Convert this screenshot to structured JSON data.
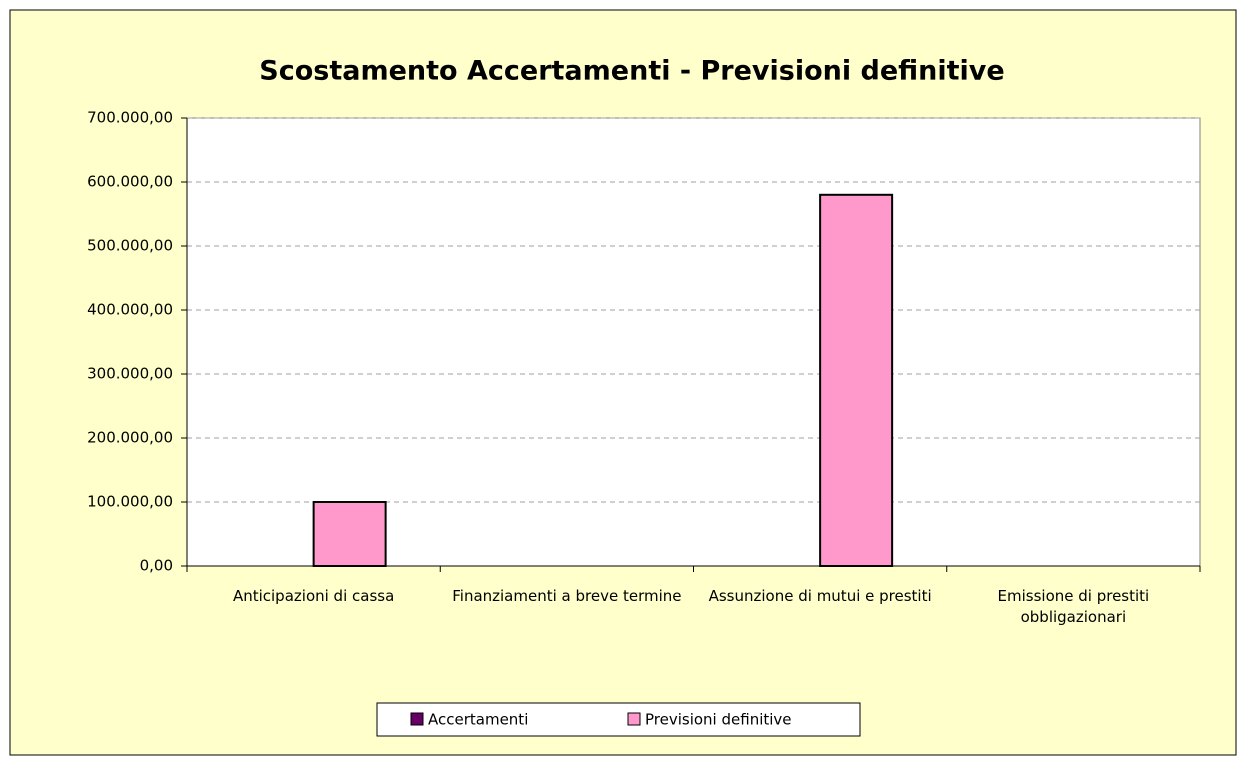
{
  "chart_data": {
    "type": "bar",
    "title": "Scostamento Accertamenti - Previsioni definitive",
    "categories": [
      "Anticipazioni di cassa",
      "Finanziamenti a breve termine",
      "Assunzione di mutui e prestiti",
      "Emissione di prestiti obbligazionari"
    ],
    "series": [
      {
        "name": "Accertamenti",
        "color": "#660066",
        "values": [
          0,
          0,
          0,
          0
        ]
      },
      {
        "name": "Previsioni definitive",
        "color": "#ff99cc",
        "values": [
          100000,
          0,
          580000,
          0
        ]
      }
    ],
    "ylim": [
      0,
      700000
    ],
    "yticks": [
      {
        "value": 0,
        "label": "0,00"
      },
      {
        "value": 100000,
        "label": "100.000,00"
      },
      {
        "value": 200000,
        "label": "200.000,00"
      },
      {
        "value": 300000,
        "label": "300.000,00"
      },
      {
        "value": 400000,
        "label": "400.000,00"
      },
      {
        "value": 500000,
        "label": "500.000,00"
      },
      {
        "value": 600000,
        "label": "600.000,00"
      },
      {
        "value": 700000,
        "label": "700.000,00"
      }
    ],
    "grid": true,
    "legend": "bottom"
  }
}
